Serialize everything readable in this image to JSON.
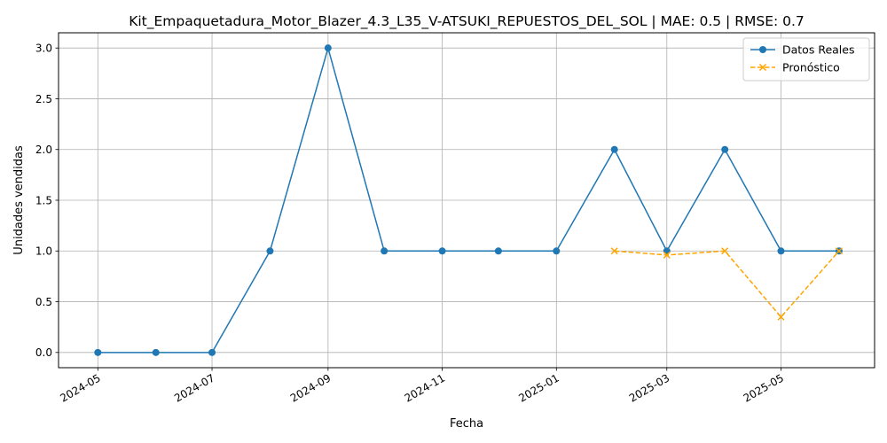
{
  "chart_data": {
    "type": "line",
    "title": "Kit_Empaquetadura_Motor_Blazer_4.3_L35_V-ATSUKI_REPUESTOS_DEL_SOL | MAE: 0.5 | RMSE: 0.7",
    "xlabel": "Fecha",
    "ylabel": "Unidades vendidas",
    "x_ticks": [
      "2024-05",
      "2024-07",
      "2024-09",
      "2024-11",
      "2025-01",
      "2025-03",
      "2025-05"
    ],
    "y_ticks": [
      "0.0",
      "0.5",
      "1.0",
      "1.5",
      "2.0",
      "2.5",
      "3.0"
    ],
    "ylim": [
      -0.15,
      3.15
    ],
    "xlim": [
      "2024-04-10",
      "2025-06-20"
    ],
    "grid": true,
    "legend_position": "top-right",
    "series": [
      {
        "name": "Datos Reales",
        "color": "#1f77b4",
        "marker": "circle",
        "line_style": "solid",
        "x": [
          "2024-05-01",
          "2024-06-01",
          "2024-07-01",
          "2024-08-01",
          "2024-09-01",
          "2024-10-01",
          "2024-11-01",
          "2024-12-01",
          "2025-01-01",
          "2025-02-01",
          "2025-03-01",
          "2025-04-01",
          "2025-05-01",
          "2025-06-01"
        ],
        "y": [
          0,
          0,
          0,
          1,
          3,
          1,
          1,
          1,
          1,
          2,
          1,
          2,
          1,
          1
        ]
      },
      {
        "name": "Pronóstico",
        "color": "#ffa500",
        "marker": "x",
        "line_style": "dashed",
        "x": [
          "2025-02-01",
          "2025-03-01",
          "2025-04-01",
          "2025-05-01",
          "2025-06-01"
        ],
        "y": [
          1.0,
          0.96,
          1.0,
          0.35,
          1.0
        ]
      }
    ]
  }
}
